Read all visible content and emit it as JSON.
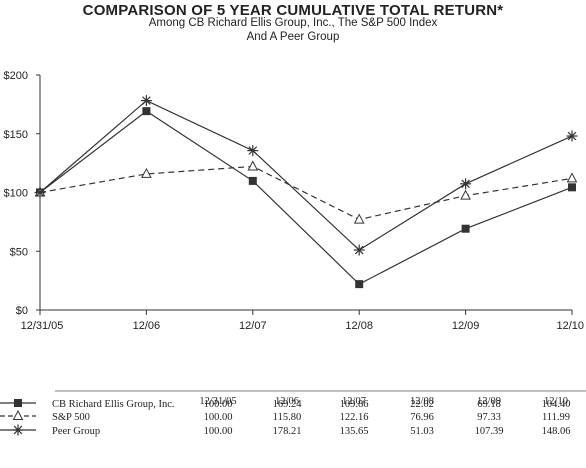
{
  "chart_data": {
    "type": "line",
    "title": "COMPARISON OF 5 YEAR CUMULATIVE TOTAL RETURN*",
    "subtitle_lines": [
      "Among CB Richard Ellis Group, Inc., The S&P 500 Index",
      "And A Peer Group"
    ],
    "categories": [
      "12/31/05",
      "12/06",
      "12/07",
      "12/08",
      "12/09",
      "12/10"
    ],
    "yticks": [
      "$0",
      "$50",
      "$100",
      "$150",
      "$200"
    ],
    "ylim": [
      0,
      200
    ],
    "grid": false,
    "legend": "table-below",
    "series": [
      {
        "name": "CB Richard Ellis Group, Inc.",
        "marker": "square",
        "dashed": false,
        "values": [
          100.0,
          169.24,
          109.86,
          22.02,
          69.18,
          104.4
        ],
        "labels": [
          "100.00",
          "169.24",
          "109.86",
          "22.02",
          "69.18",
          "104.40"
        ]
      },
      {
        "name": "S&P 500",
        "marker": "triangle",
        "dashed": true,
        "values": [
          100.0,
          115.8,
          122.16,
          76.96,
          97.33,
          111.99
        ],
        "labels": [
          "100.00",
          "115.80",
          "122.16",
          "76.96",
          "97.33",
          "111.99"
        ]
      },
      {
        "name": "Peer Group",
        "marker": "star",
        "dashed": false,
        "values": [
          100.0,
          178.21,
          135.65,
          51.03,
          107.39,
          148.06
        ],
        "labels": [
          "100.00",
          "178.21",
          "135.65",
          "51.03",
          "107.39",
          "148.06"
        ]
      }
    ],
    "table_headers": [
      "12/31/05",
      "12/06",
      "12/07",
      "12/08",
      "12/09",
      "12/10"
    ]
  }
}
